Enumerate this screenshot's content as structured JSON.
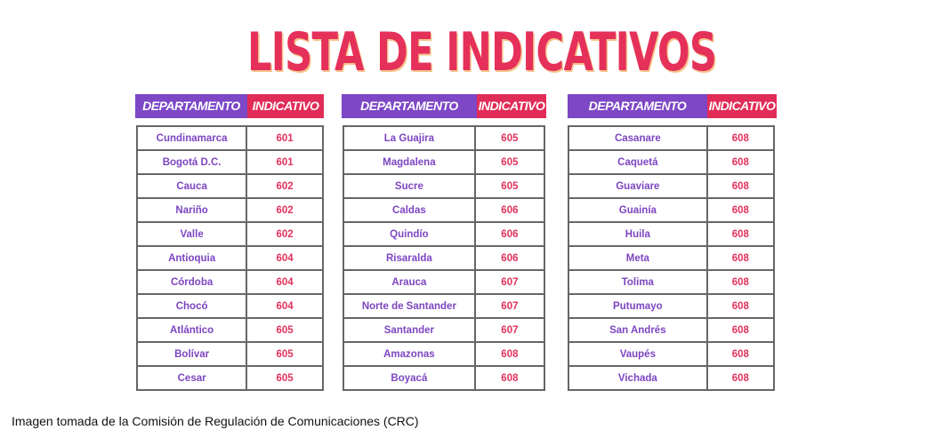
{
  "title": "LISTA DE INDICATIVOS",
  "colors": {
    "title": "#e5305a",
    "header_departamento": "#7d47c6",
    "header_indicativo": "#e12c57",
    "dept_text": "#7c45c0",
    "code_text": "#e2325c",
    "border": "#666666"
  },
  "headers": {
    "departamento": "DEPARTAMENTO",
    "indicativo": "INDICATIVO"
  },
  "tables": [
    {
      "rows": [
        {
          "dept": "Cundinamarca",
          "code": "601"
        },
        {
          "dept": "Bogotá D.C.",
          "code": "601"
        },
        {
          "dept": "Cauca",
          "code": "602"
        },
        {
          "dept": "Nariño",
          "code": "602"
        },
        {
          "dept": "Valle",
          "code": "602"
        },
        {
          "dept": "Antioquia",
          "code": "604"
        },
        {
          "dept": "Córdoba",
          "code": "604"
        },
        {
          "dept": "Chocó",
          "code": "604"
        },
        {
          "dept": "Atlántico",
          "code": "605"
        },
        {
          "dept": "Bolívar",
          "code": "605"
        },
        {
          "dept": "Cesar",
          "code": "605"
        }
      ]
    },
    {
      "rows": [
        {
          "dept": "La Guajira",
          "code": "605"
        },
        {
          "dept": "Magdalena",
          "code": "605"
        },
        {
          "dept": "Sucre",
          "code": "605"
        },
        {
          "dept": "Caldas",
          "code": "606"
        },
        {
          "dept": "Quindío",
          "code": "606"
        },
        {
          "dept": "Risaralda",
          "code": "606"
        },
        {
          "dept": "Arauca",
          "code": "607"
        },
        {
          "dept": "Norte de Santander",
          "code": "607"
        },
        {
          "dept": "Santander",
          "code": "607"
        },
        {
          "dept": "Amazonas",
          "code": "608"
        },
        {
          "dept": "Boyacá",
          "code": "608"
        }
      ]
    },
    {
      "rows": [
        {
          "dept": "Casanare",
          "code": "608"
        },
        {
          "dept": "Caquetá",
          "code": "608"
        },
        {
          "dept": "Guaviare",
          "code": "608"
        },
        {
          "dept": "Guainía",
          "code": "608"
        },
        {
          "dept": "Huila",
          "code": "608"
        },
        {
          "dept": "Meta",
          "code": "608"
        },
        {
          "dept": "Tolima",
          "code": "608"
        },
        {
          "dept": "Putumayo",
          "code": "608"
        },
        {
          "dept": "San Andrés",
          "code": "608"
        },
        {
          "dept": "Vaupés",
          "code": "608"
        },
        {
          "dept": "Vichada",
          "code": "608"
        }
      ]
    }
  ],
  "caption": "Imagen tomada de la Comisión de Regulación de Comunicaciones (CRC)"
}
